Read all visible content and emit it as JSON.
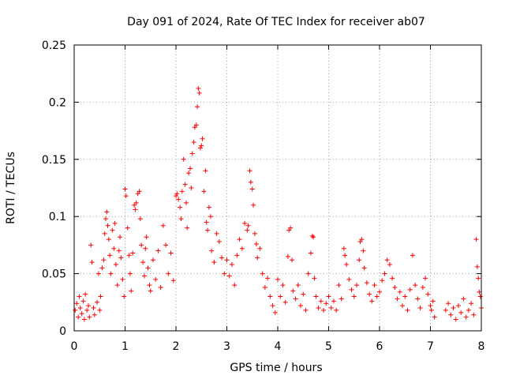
{
  "chart_data": {
    "type": "scatter",
    "title": "Day 091 of 2024, Rate Of TEC Index for receiver ab07",
    "xlabel": "GPS time / hours",
    "ylabel": "ROTI / TECUs",
    "xlim": [
      0,
      8
    ],
    "ylim": [
      0,
      0.25
    ],
    "xticks": [
      0,
      1,
      2,
      3,
      4,
      5,
      6,
      7,
      8
    ],
    "xtick_labels": [
      "0",
      "1",
      "2",
      "3",
      "4",
      "5",
      "6",
      "7",
      "8"
    ],
    "yticks": [
      0,
      0.05,
      0.1,
      0.15,
      0.2,
      0.25
    ],
    "ytick_labels": [
      "0",
      "0.05",
      "0.1",
      "0.15",
      "0.2",
      "0.25"
    ],
    "grid": true,
    "marker": "+",
    "color": "#ff0000",
    "series": [
      {
        "name": "ROTI",
        "points": [
          [
            0.02,
            0.018
          ],
          [
            0.05,
            0.024
          ],
          [
            0.08,
            0.012
          ],
          [
            0.1,
            0.03
          ],
          [
            0.12,
            0.02
          ],
          [
            0.15,
            0.015
          ],
          [
            0.18,
            0.026
          ],
          [
            0.2,
            0.01
          ],
          [
            0.22,
            0.032
          ],
          [
            0.25,
            0.018
          ],
          [
            0.28,
            0.022
          ],
          [
            0.3,
            0.012
          ],
          [
            0.33,
            0.075
          ],
          [
            0.35,
            0.06
          ],
          [
            0.38,
            0.02
          ],
          [
            0.4,
            0.014
          ],
          [
            0.45,
            0.025
          ],
          [
            0.48,
            0.05
          ],
          [
            0.5,
            0.018
          ],
          [
            0.52,
            0.03
          ],
          [
            0.55,
            0.055
          ],
          [
            0.58,
            0.062
          ],
          [
            0.6,
            0.085
          ],
          [
            0.62,
            0.098
          ],
          [
            0.64,
            0.104
          ],
          [
            0.66,
            0.092
          ],
          [
            0.68,
            0.08
          ],
          [
            0.7,
            0.066
          ],
          [
            0.72,
            0.05
          ],
          [
            0.75,
            0.088
          ],
          [
            0.78,
            0.072
          ],
          [
            0.8,
            0.094
          ],
          [
            0.82,
            0.058
          ],
          [
            0.85,
            0.04
          ],
          [
            0.88,
            0.07
          ],
          [
            0.9,
            0.082
          ],
          [
            0.92,
            0.064
          ],
          [
            0.95,
            0.045
          ],
          [
            0.98,
            0.03
          ],
          [
            1.0,
            0.124
          ],
          [
            1.02,
            0.118
          ],
          [
            1.05,
            0.09
          ],
          [
            1.08,
            0.066
          ],
          [
            1.1,
            0.05
          ],
          [
            1.12,
            0.035
          ],
          [
            1.15,
            0.068
          ],
          [
            1.18,
            0.11
          ],
          [
            1.2,
            0.106
          ],
          [
            1.22,
            0.112
          ],
          [
            1.25,
            0.12
          ],
          [
            1.28,
            0.122
          ],
          [
            1.3,
            0.098
          ],
          [
            1.32,
            0.075
          ],
          [
            1.35,
            0.06
          ],
          [
            1.38,
            0.048
          ],
          [
            1.4,
            0.072
          ],
          [
            1.42,
            0.082
          ],
          [
            1.45,
            0.055
          ],
          [
            1.48,
            0.04
          ],
          [
            1.5,
            0.035
          ],
          [
            1.55,
            0.062
          ],
          [
            1.6,
            0.045
          ],
          [
            1.65,
            0.07
          ],
          [
            1.7,
            0.038
          ],
          [
            1.75,
            0.092
          ],
          [
            1.8,
            0.075
          ],
          [
            1.85,
            0.05
          ],
          [
            1.9,
            0.068
          ],
          [
            1.95,
            0.044
          ],
          [
            2.0,
            0.118
          ],
          [
            2.02,
            0.12
          ],
          [
            2.05,
            0.115
          ],
          [
            2.08,
            0.108
          ],
          [
            2.1,
            0.098
          ],
          [
            2.12,
            0.122
          ],
          [
            2.15,
            0.15
          ],
          [
            2.18,
            0.128
          ],
          [
            2.2,
            0.112
          ],
          [
            2.22,
            0.09
          ],
          [
            2.25,
            0.138
          ],
          [
            2.28,
            0.142
          ],
          [
            2.3,
            0.125
          ],
          [
            2.32,
            0.155
          ],
          [
            2.35,
            0.165
          ],
          [
            2.37,
            0.178
          ],
          [
            2.4,
            0.18
          ],
          [
            2.42,
            0.196
          ],
          [
            2.44,
            0.212
          ],
          [
            2.46,
            0.208
          ],
          [
            2.48,
            0.16
          ],
          [
            2.5,
            0.162
          ],
          [
            2.52,
            0.168
          ],
          [
            2.55,
            0.122
          ],
          [
            2.58,
            0.14
          ],
          [
            2.6,
            0.095
          ],
          [
            2.62,
            0.088
          ],
          [
            2.65,
            0.108
          ],
          [
            2.68,
            0.1
          ],
          [
            2.7,
            0.07
          ],
          [
            2.75,
            0.06
          ],
          [
            2.8,
            0.085
          ],
          [
            2.85,
            0.078
          ],
          [
            2.9,
            0.064
          ],
          [
            2.95,
            0.05
          ],
          [
            3.0,
            0.062
          ],
          [
            3.05,
            0.048
          ],
          [
            3.1,
            0.058
          ],
          [
            3.15,
            0.04
          ],
          [
            3.2,
            0.066
          ],
          [
            3.25,
            0.08
          ],
          [
            3.3,
            0.072
          ],
          [
            3.35,
            0.094
          ],
          [
            3.4,
            0.088
          ],
          [
            3.42,
            0.092
          ],
          [
            3.45,
            0.14
          ],
          [
            3.47,
            0.13
          ],
          [
            3.5,
            0.124
          ],
          [
            3.52,
            0.11
          ],
          [
            3.55,
            0.085
          ],
          [
            3.58,
            0.076
          ],
          [
            3.6,
            0.064
          ],
          [
            3.65,
            0.072
          ],
          [
            3.7,
            0.05
          ],
          [
            3.75,
            0.038
          ],
          [
            3.8,
            0.046
          ],
          [
            3.85,
            0.03
          ],
          [
            3.9,
            0.022
          ],
          [
            3.95,
            0.016
          ],
          [
            4.0,
            0.045
          ],
          [
            4.05,
            0.03
          ],
          [
            4.1,
            0.04
          ],
          [
            4.15,
            0.025
          ],
          [
            4.2,
            0.065
          ],
          [
            4.22,
            0.088
          ],
          [
            4.25,
            0.09
          ],
          [
            4.28,
            0.062
          ],
          [
            4.3,
            0.035
          ],
          [
            4.35,
            0.028
          ],
          [
            4.4,
            0.04
          ],
          [
            4.45,
            0.022
          ],
          [
            4.5,
            0.032
          ],
          [
            4.55,
            0.018
          ],
          [
            4.6,
            0.05
          ],
          [
            4.65,
            0.068
          ],
          [
            4.68,
            0.083
          ],
          [
            4.7,
            0.082
          ],
          [
            4.72,
            0.046
          ],
          [
            4.75,
            0.03
          ],
          [
            4.8,
            0.02
          ],
          [
            4.85,
            0.026
          ],
          [
            4.9,
            0.018
          ],
          [
            4.95,
            0.024
          ],
          [
            5.0,
            0.03
          ],
          [
            5.05,
            0.02
          ],
          [
            5.1,
            0.026
          ],
          [
            5.15,
            0.018
          ],
          [
            5.2,
            0.04
          ],
          [
            5.25,
            0.028
          ],
          [
            5.3,
            0.072
          ],
          [
            5.32,
            0.066
          ],
          [
            5.35,
            0.058
          ],
          [
            5.4,
            0.045
          ],
          [
            5.45,
            0.036
          ],
          [
            5.5,
            0.03
          ],
          [
            5.55,
            0.04
          ],
          [
            5.6,
            0.062
          ],
          [
            5.62,
            0.078
          ],
          [
            5.65,
            0.08
          ],
          [
            5.68,
            0.07
          ],
          [
            5.7,
            0.055
          ],
          [
            5.75,
            0.042
          ],
          [
            5.8,
            0.032
          ],
          [
            5.85,
            0.026
          ],
          [
            5.9,
            0.04
          ],
          [
            5.95,
            0.03
          ],
          [
            6.0,
            0.034
          ],
          [
            6.05,
            0.044
          ],
          [
            6.1,
            0.05
          ],
          [
            6.15,
            0.062
          ],
          [
            6.2,
            0.058
          ],
          [
            6.25,
            0.046
          ],
          [
            6.3,
            0.038
          ],
          [
            6.35,
            0.028
          ],
          [
            6.4,
            0.034
          ],
          [
            6.45,
            0.022
          ],
          [
            6.5,
            0.03
          ],
          [
            6.55,
            0.018
          ],
          [
            6.6,
            0.036
          ],
          [
            6.65,
            0.066
          ],
          [
            6.7,
            0.04
          ],
          [
            6.75,
            0.028
          ],
          [
            6.8,
            0.02
          ],
          [
            6.85,
            0.038
          ],
          [
            6.9,
            0.046
          ],
          [
            6.95,
            0.032
          ],
          [
            7.0,
            0.022
          ],
          [
            7.02,
            0.018
          ],
          [
            7.05,
            0.026
          ],
          [
            7.08,
            0.012
          ],
          [
            7.3,
            0.018
          ],
          [
            7.35,
            0.024
          ],
          [
            7.4,
            0.014
          ],
          [
            7.45,
            0.02
          ],
          [
            7.5,
            0.01
          ],
          [
            7.55,
            0.022
          ],
          [
            7.6,
            0.016
          ],
          [
            7.65,
            0.028
          ],
          [
            7.7,
            0.012
          ],
          [
            7.75,
            0.018
          ],
          [
            7.8,
            0.024
          ],
          [
            7.85,
            0.014
          ],
          [
            7.9,
            0.08
          ],
          [
            7.92,
            0.056
          ],
          [
            7.94,
            0.046
          ],
          [
            7.96,
            0.034
          ],
          [
            7.98,
            0.03
          ],
          [
            8.0,
            0.02
          ]
        ]
      }
    ]
  }
}
